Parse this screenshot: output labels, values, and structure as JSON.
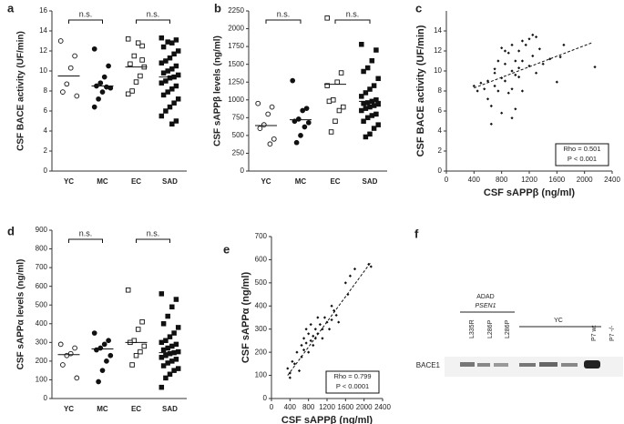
{
  "chart_data": [
    {
      "type": "dot",
      "panel_label": "a",
      "y_label": "CSF BACE activity (UF/min)",
      "categories": [
        "YC",
        "MC",
        "EC",
        "SAD"
      ],
      "markers": [
        "circle-open",
        "circle-filled",
        "square-open",
        "square-filled"
      ],
      "values": [
        [
          13,
          11.5,
          10.3,
          8.7,
          7.9,
          7.5
        ],
        [
          12.2,
          10.5,
          9.4,
          8.8,
          8.5,
          8.3,
          8.4,
          7.9,
          7.2,
          6.4
        ],
        [
          13.2,
          12.5,
          12.8,
          11.5,
          10.7,
          10.4,
          9.5,
          8.9,
          8.0,
          7.7,
          11.1
        ],
        [
          13.3,
          13.1,
          12.8,
          12.9,
          12.4,
          12.0,
          11.7,
          11.3,
          11.0,
          10.8,
          10.5,
          10.2,
          10.0,
          9.8,
          9.6,
          9.4,
          9.3,
          9.0,
          8.8,
          8.5,
          8.2,
          7.9,
          7.6,
          7.2,
          6.8,
          6.4,
          6.0,
          5.5,
          5.0,
          4.7
        ]
      ],
      "medians": [
        9.5,
        8.5,
        10.4,
        9.4
      ],
      "annotations": [
        "n.s.",
        "n.s."
      ],
      "ylim": [
        0,
        16
      ],
      "yticks": [
        0,
        2,
        4,
        6,
        8,
        10,
        12,
        14,
        16
      ]
    },
    {
      "type": "dot",
      "panel_label": "b",
      "y_label": "CSF sAPPβ levels (ng/ml)",
      "categories": [
        "YC",
        "MC",
        "EC",
        "SAD"
      ],
      "markers": [
        "circle-open",
        "circle-filled",
        "square-open",
        "square-filled"
      ],
      "values": [
        [
          950,
          900,
          800,
          650,
          600,
          450,
          380
        ],
        [
          1270,
          880,
          850,
          730,
          700,
          680,
          620,
          500,
          400
        ],
        [
          2150,
          1380,
          1250,
          1000,
          980,
          900,
          850,
          700,
          550,
          1200
        ],
        [
          1780,
          1700,
          1550,
          1450,
          1400,
          1300,
          1200,
          1150,
          1100,
          1050,
          1000,
          980,
          960,
          950,
          940,
          920,
          900,
          880,
          850,
          800,
          780,
          750,
          700,
          650,
          600,
          520,
          480
        ]
      ],
      "medians": [
        640,
        720,
        1220,
        980
      ],
      "annotations": [
        "n.s.",
        "n.s."
      ],
      "ylim": [
        0,
        2250
      ],
      "yticks": [
        0,
        250,
        500,
        750,
        1000,
        1250,
        1500,
        1750,
        2000,
        2250
      ]
    },
    {
      "type": "scatter",
      "panel_label": "c",
      "x_label": "CSF sAPPβ (ng/ml)",
      "y_label": "CSF BACE activity (UF/min)",
      "x": [
        400,
        450,
        500,
        550,
        600,
        600,
        650,
        650,
        700,
        700,
        700,
        750,
        750,
        800,
        800,
        800,
        850,
        850,
        850,
        900,
        900,
        950,
        950,
        950,
        950,
        1000,
        1000,
        1000,
        1050,
        1050,
        1050,
        1100,
        1100,
        1100,
        1150,
        1200,
        1200,
        1250,
        1250,
        1300,
        1300,
        1350,
        1400,
        1500,
        1600,
        1650,
        1700,
        2150
      ],
      "values": [
        8.5,
        8.0,
        8.8,
        8.2,
        9.0,
        7.2,
        6.5,
        4.7,
        9.8,
        8.5,
        10.2,
        11.0,
        8.0,
        12.3,
        9.3,
        5.8,
        12.0,
        10.7,
        9.0,
        11.8,
        7.8,
        12.6,
        10.0,
        8.2,
        5.3,
        11.0,
        9.6,
        6.2,
        12.0,
        10.3,
        9.4,
        13.0,
        11.0,
        8.0,
        12.6,
        13.2,
        10.5,
        13.6,
        11.5,
        13.4,
        9.8,
        12.2,
        10.7,
        11.2,
        8.9,
        11.4,
        12.6,
        10.4
      ],
      "trend": {
        "x": [
          400,
          2100
        ],
        "y": [
          8.3,
          12.8
        ]
      },
      "stats": [
        "Rho = 0.501",
        "P < 0.001"
      ],
      "xlim": [
        0,
        2400
      ],
      "xticks": [
        0,
        400,
        800,
        1200,
        1600,
        2000,
        2400
      ],
      "ylim": [
        0,
        16
      ],
      "yticks": [
        0,
        2,
        4,
        6,
        8,
        10,
        12,
        14
      ]
    },
    {
      "type": "dot",
      "panel_label": "d",
      "y_label": "CSF sAPPα levels (ng/ml)",
      "categories": [
        "YC",
        "MC",
        "EC",
        "SAD"
      ],
      "markers": [
        "circle-open",
        "circle-filled",
        "square-open",
        "square-filled"
      ],
      "values": [
        [
          290,
          270,
          240,
          230,
          180,
          110
        ],
        [
          350,
          310,
          290,
          270,
          260,
          230,
          200,
          150,
          90
        ],
        [
          580,
          410,
          370,
          310,
          300,
          280,
          250,
          230,
          180
        ],
        [
          560,
          530,
          490,
          440,
          400,
          380,
          350,
          330,
          310,
          300,
          290,
          280,
          270,
          260,
          250,
          245,
          240,
          230,
          220,
          210,
          200,
          190,
          175,
          160,
          150,
          130,
          110,
          60
        ]
      ],
      "medians": [
        235,
        265,
        300,
        245
      ],
      "annotations": [
        "n.s.",
        "n.s."
      ],
      "ylim": [
        0,
        900
      ],
      "yticks": [
        0,
        100,
        200,
        300,
        400,
        500,
        600,
        700,
        800,
        900
      ]
    },
    {
      "type": "scatter",
      "panel_label": "e",
      "x_label": "CSF sAPPβ (ng/ml)",
      "y_label": "CSF sAPPα (ng/ml)",
      "x": [
        350,
        400,
        400,
        450,
        500,
        550,
        600,
        650,
        650,
        700,
        700,
        750,
        750,
        800,
        800,
        850,
        850,
        900,
        900,
        950,
        950,
        1000,
        1000,
        1050,
        1100,
        1100,
        1150,
        1200,
        1250,
        1300,
        1300,
        1350,
        1400,
        1450,
        1600,
        1650,
        1700,
        1800,
        2100,
        2150
      ],
      "values": [
        130,
        110,
        90,
        160,
        150,
        200,
        120,
        230,
        180,
        260,
        210,
        300,
        240,
        280,
        200,
        320,
        250,
        270,
        230,
        300,
        260,
        350,
        280,
        320,
        300,
        260,
        350,
        330,
        300,
        400,
        340,
        380,
        360,
        330,
        500,
        450,
        530,
        560,
        580,
        570
      ],
      "trend": {
        "x": [
          350,
          2150
        ],
        "y": [
          100,
          590
        ]
      },
      "stats": [
        "Rho = 0.799",
        "P < 0.0001"
      ],
      "xlim": [
        0,
        2400
      ],
      "xticks": [
        0,
        400,
        800,
        1200,
        1600,
        2000,
        2400
      ],
      "ylim": [
        0,
        700
      ],
      "yticks": [
        0,
        100,
        200,
        300,
        400,
        500,
        600,
        700
      ]
    }
  ],
  "blot": {
    "panel_label": "f",
    "group": "ADAD",
    "gene": "PSEN1",
    "lanes": [
      "L335R",
      "L286P",
      "L286P"
    ],
    "control": "YC",
    "wt": "P7 wt",
    "ko": "P7 -/-",
    "protein": "BACE1"
  }
}
